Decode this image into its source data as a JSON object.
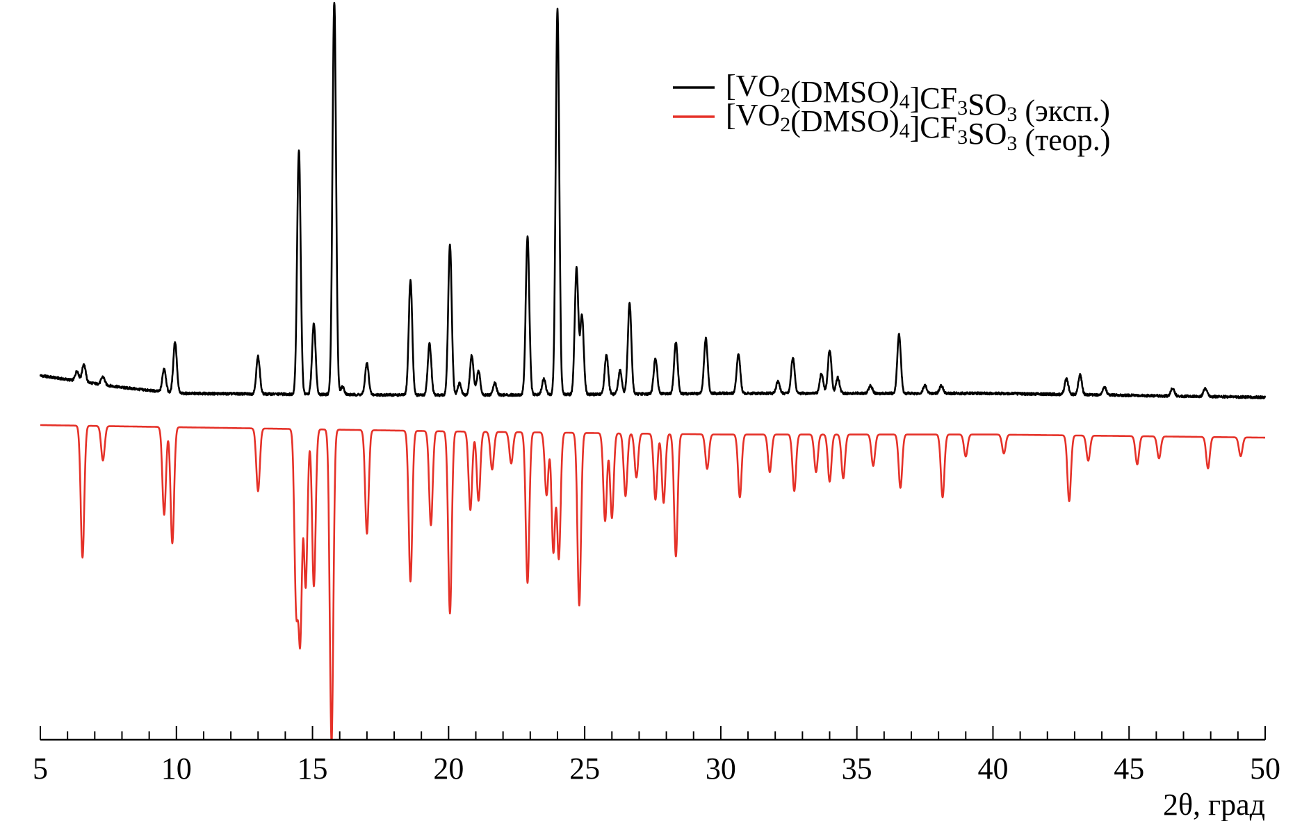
{
  "chart_data": {
    "type": "line",
    "title": "",
    "xlabel": "2θ, град",
    "ylabel": "",
    "xlim": [
      5,
      50
    ],
    "x_ticks": [
      5,
      10,
      15,
      20,
      25,
      30,
      35,
      40,
      45,
      50
    ],
    "x_tick_labels": [
      "5",
      "10",
      "15",
      "20",
      "25",
      "30",
      "35",
      "40",
      "45",
      "50"
    ],
    "minor_tick_step": 1,
    "grid": false,
    "legend_position": "top-right",
    "layout": "mirrored: experimental pattern plotted upward, theoretical pattern plotted downward (inverted) below it",
    "series": [
      {
        "name": "[VO2(DMSO)4]CF3SO3 (эксп.)",
        "legend_parts": [
          {
            "t": "[VO",
            "sub": false
          },
          {
            "t": "2",
            "sub": true
          },
          {
            "t": "(DMSO)",
            "sub": false
          },
          {
            "t": "4",
            "sub": true
          },
          {
            "t": "]CF",
            "sub": false
          },
          {
            "t": "3",
            "sub": true
          },
          {
            "t": "SO",
            "sub": false
          },
          {
            "t": "3",
            "sub": true
          },
          {
            "t": " (эксп.)",
            "sub": false
          }
        ],
        "color": "#000000",
        "direction": "up",
        "baseline": [
          [
            5,
            0.055
          ],
          [
            8,
            0.025
          ],
          [
            10,
            0.01
          ],
          [
            20,
            0.005
          ],
          [
            30,
            0.01
          ],
          [
            40,
            0.01
          ],
          [
            50,
            0.0
          ]
        ],
        "peaks": [
          [
            6.35,
            0.025
          ],
          [
            6.6,
            0.045
          ],
          [
            7.3,
            0.02
          ],
          [
            9.55,
            0.06
          ],
          [
            9.95,
            0.13
          ],
          [
            13.0,
            0.095
          ],
          [
            14.5,
            0.62
          ],
          [
            15.05,
            0.18
          ],
          [
            15.8,
            1.0
          ],
          [
            16.1,
            0.02
          ],
          [
            17.0,
            0.08
          ],
          [
            18.6,
            0.29
          ],
          [
            19.3,
            0.13
          ],
          [
            20.05,
            0.38
          ],
          [
            20.4,
            0.03
          ],
          [
            20.85,
            0.1
          ],
          [
            21.1,
            0.06
          ],
          [
            21.7,
            0.03
          ],
          [
            22.9,
            0.4
          ],
          [
            23.5,
            0.04
          ],
          [
            24.0,
            0.98
          ],
          [
            24.7,
            0.32
          ],
          [
            24.9,
            0.2
          ],
          [
            25.8,
            0.1
          ],
          [
            26.3,
            0.06
          ],
          [
            26.65,
            0.23
          ],
          [
            27.6,
            0.09
          ],
          [
            28.35,
            0.13
          ],
          [
            29.45,
            0.14
          ],
          [
            30.65,
            0.1
          ],
          [
            32.1,
            0.03
          ],
          [
            32.65,
            0.09
          ],
          [
            33.7,
            0.05
          ],
          [
            34.0,
            0.11
          ],
          [
            34.3,
            0.04
          ],
          [
            35.5,
            0.02
          ],
          [
            36.55,
            0.15
          ],
          [
            37.5,
            0.02
          ],
          [
            38.1,
            0.02
          ],
          [
            42.7,
            0.04
          ],
          [
            43.2,
            0.05
          ],
          [
            44.1,
            0.02
          ],
          [
            46.6,
            0.02
          ],
          [
            47.8,
            0.02
          ]
        ]
      },
      {
        "name": "[VO2(DMSO)4]CF3SO3 (теор.)",
        "legend_parts": [
          {
            "t": "[VO",
            "sub": false
          },
          {
            "t": "2",
            "sub": true
          },
          {
            "t": "(DMSO)",
            "sub": false
          },
          {
            "t": "4",
            "sub": true
          },
          {
            "t": "]CF",
            "sub": false
          },
          {
            "t": "3",
            "sub": true
          },
          {
            "t": "SO",
            "sub": false
          },
          {
            "t": "3",
            "sub": true
          },
          {
            "t": " (теор.)",
            "sub": false
          }
        ],
        "color": "#e53128",
        "direction": "down",
        "baseline": [
          [
            5,
            0.0
          ],
          [
            20,
            0.02
          ],
          [
            30,
            0.03
          ],
          [
            40,
            0.03
          ],
          [
            50,
            0.04
          ]
        ],
        "peaks": [
          [
            6.55,
            0.42
          ],
          [
            7.3,
            0.11
          ],
          [
            9.55,
            0.28
          ],
          [
            9.85,
            0.37
          ],
          [
            13.0,
            0.2
          ],
          [
            14.4,
            0.55
          ],
          [
            14.55,
            0.65
          ],
          [
            14.75,
            0.5
          ],
          [
            15.05,
            0.5
          ],
          [
            15.7,
            1.0
          ],
          [
            17.0,
            0.33
          ],
          [
            18.6,
            0.48
          ],
          [
            19.35,
            0.3
          ],
          [
            20.05,
            0.58
          ],
          [
            20.8,
            0.25
          ],
          [
            21.1,
            0.22
          ],
          [
            21.6,
            0.12
          ],
          [
            22.3,
            0.1
          ],
          [
            22.9,
            0.48
          ],
          [
            23.6,
            0.2
          ],
          [
            23.85,
            0.38
          ],
          [
            24.05,
            0.4
          ],
          [
            24.8,
            0.55
          ],
          [
            25.75,
            0.28
          ],
          [
            26.0,
            0.27
          ],
          [
            26.5,
            0.2
          ],
          [
            26.9,
            0.14
          ],
          [
            27.6,
            0.21
          ],
          [
            27.9,
            0.22
          ],
          [
            28.35,
            0.39
          ],
          [
            29.5,
            0.11
          ],
          [
            30.7,
            0.2
          ],
          [
            31.8,
            0.12
          ],
          [
            32.7,
            0.18
          ],
          [
            33.5,
            0.12
          ],
          [
            34.0,
            0.15
          ],
          [
            34.5,
            0.14
          ],
          [
            35.6,
            0.1
          ],
          [
            36.6,
            0.17
          ],
          [
            38.15,
            0.2
          ],
          [
            39.0,
            0.07
          ],
          [
            40.4,
            0.06
          ],
          [
            42.8,
            0.21
          ],
          [
            43.5,
            0.08
          ],
          [
            45.3,
            0.09
          ],
          [
            46.1,
            0.07
          ],
          [
            47.9,
            0.1
          ],
          [
            49.1,
            0.06
          ]
        ]
      }
    ]
  }
}
